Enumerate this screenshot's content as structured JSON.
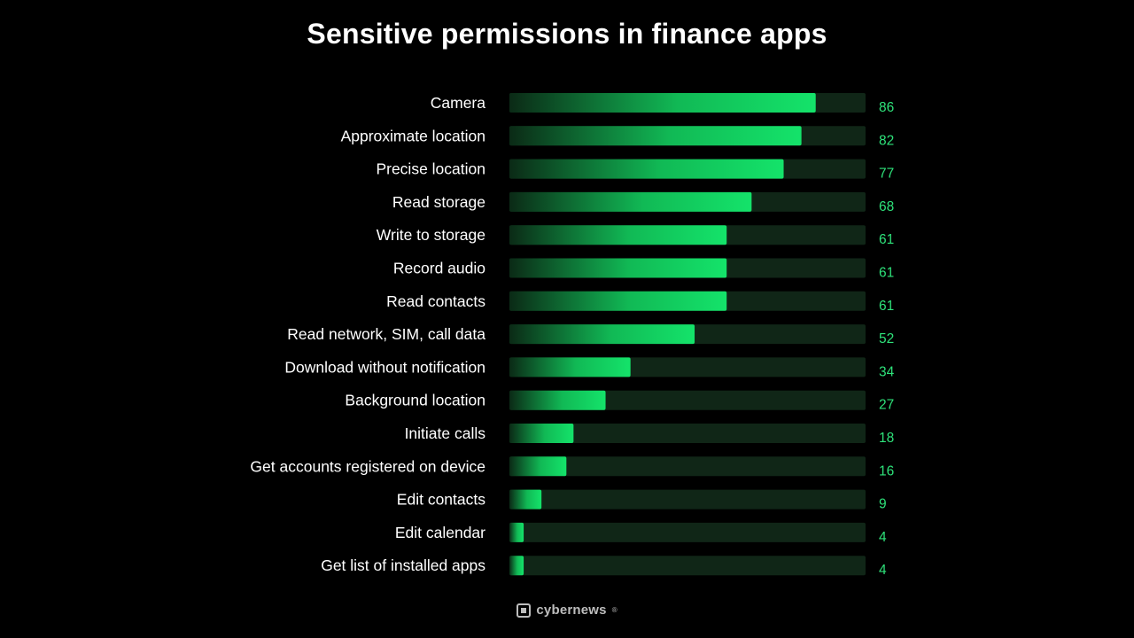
{
  "colors": {
    "background": "#000000",
    "bar_start": "#0b2a16",
    "bar_end": "#14e36a",
    "track": "#102617",
    "value_text": "#2ee27a",
    "label_text": "#ffffff"
  },
  "brand": {
    "name": "cybernews",
    "icon": "cybernews-logo-icon"
  },
  "chart_data": {
    "type": "bar",
    "orientation": "horizontal",
    "title": "Sensitive permissions in finance apps",
    "categories": [
      "Camera",
      "Approximate location",
      "Precise location",
      "Read storage",
      "Write to storage",
      "Record audio",
      "Read contacts",
      "Read network, SIM, call data",
      "Download without notification",
      "Background location",
      "Initiate calls",
      "Get accounts registered on device",
      "Edit contacts",
      "Edit calendar",
      "Get list of installed apps"
    ],
    "values": [
      86,
      82,
      77,
      68,
      61,
      61,
      61,
      52,
      34,
      27,
      18,
      16,
      9,
      4,
      4
    ],
    "xlim": [
      0,
      100
    ],
    "grid": false,
    "legend": "none"
  }
}
